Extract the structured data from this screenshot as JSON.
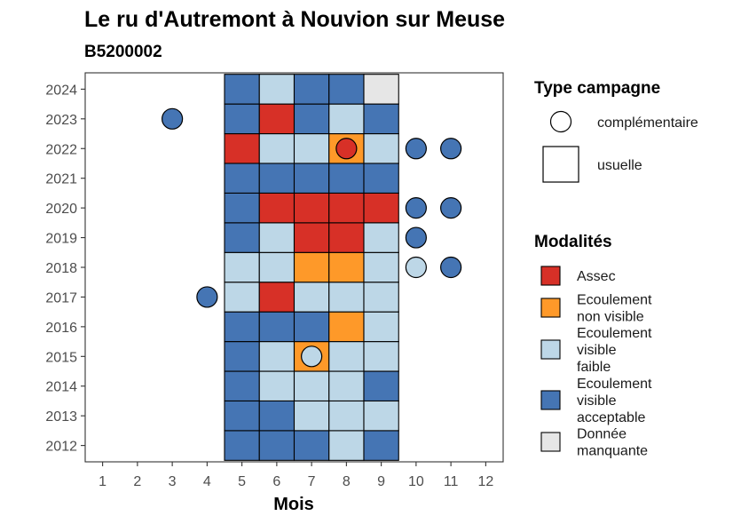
{
  "chart_data": {
    "type": "heatmap",
    "title": "Le ru d'Autremont à Nouvion sur Meuse",
    "subtitle": "B5200002",
    "xlabel": "Mois",
    "ylabel": "",
    "x_ticks": [
      1,
      2,
      3,
      4,
      5,
      6,
      7,
      8,
      9,
      10,
      11,
      12
    ],
    "y_ticks": [
      2012,
      2013,
      2014,
      2015,
      2016,
      2017,
      2018,
      2019,
      2020,
      2021,
      2022,
      2023,
      2024
    ],
    "xlim": [
      0.5,
      12.5
    ],
    "ylim": [
      2011.45,
      2024.55
    ],
    "grid": false,
    "legend_position": "right",
    "categories": {
      "A": {
        "label": "Assec",
        "color": "#D73027"
      },
      "O": {
        "label": "Ecoulement non visible",
        "color": "#FE9929"
      },
      "F": {
        "label": "Ecoulement visible faible",
        "color": "#BDD7E7"
      },
      "V": {
        "label": "Ecoulement visible acceptable",
        "color": "#4575B4"
      },
      "M": {
        "label": "Donnée manquante",
        "color": "#E6E6E6"
      }
    },
    "legend_modalites_title": "Modalités",
    "legend_modalites": [
      {
        "key": "A",
        "lines": [
          "Assec"
        ]
      },
      {
        "key": "O",
        "lines": [
          "Ecoulement",
          "non visible"
        ]
      },
      {
        "key": "F",
        "lines": [
          "Ecoulement",
          "visible",
          "faible"
        ]
      },
      {
        "key": "V",
        "lines": [
          "Ecoulement",
          "visible",
          "acceptable"
        ]
      },
      {
        "key": "M",
        "lines": [
          "Donnée",
          "manquante"
        ]
      }
    ],
    "legend_type_title": "Type campagne",
    "legend_type": [
      {
        "shape": "circle",
        "label": "complémentaire"
      },
      {
        "shape": "square",
        "label": "usuelle"
      }
    ],
    "usuelle": {
      "2024": [
        "V",
        "F",
        "V",
        "V",
        "M"
      ],
      "2023": [
        "V",
        "A",
        "V",
        "F",
        "V"
      ],
      "2022": [
        "A",
        "F",
        "F",
        "O",
        "F"
      ],
      "2021": [
        "V",
        "V",
        "V",
        "V",
        "V"
      ],
      "2020": [
        "V",
        "A",
        "A",
        "A",
        "A"
      ],
      "2019": [
        "V",
        "F",
        "A",
        "A",
        "F"
      ],
      "2018": [
        "F",
        "F",
        "O",
        "O",
        "F"
      ],
      "2017": [
        "F",
        "A",
        "F",
        "F",
        "F"
      ],
      "2016": [
        "V",
        "V",
        "V",
        "O",
        "F"
      ],
      "2015": [
        "V",
        "F",
        "O",
        "F",
        "F"
      ],
      "2014": [
        "V",
        "F",
        "F",
        "F",
        "V"
      ],
      "2013": [
        "V",
        "V",
        "F",
        "F",
        "F"
      ],
      "2012": [
        "V",
        "V",
        "V",
        "F",
        "V"
      ]
    },
    "usuelle_months": [
      5,
      6,
      7,
      8,
      9
    ],
    "complementaire": [
      {
        "year": 2023,
        "month": 3,
        "cat": "V"
      },
      {
        "year": 2022,
        "month": 8,
        "cat": "A"
      },
      {
        "year": 2022,
        "month": 10,
        "cat": "V"
      },
      {
        "year": 2022,
        "month": 11,
        "cat": "V"
      },
      {
        "year": 2020,
        "month": 10,
        "cat": "V"
      },
      {
        "year": 2020,
        "month": 11,
        "cat": "V"
      },
      {
        "year": 2019,
        "month": 10,
        "cat": "V"
      },
      {
        "year": 2018,
        "month": 10,
        "cat": "F"
      },
      {
        "year": 2018,
        "month": 11,
        "cat": "V"
      },
      {
        "year": 2017,
        "month": 4,
        "cat": "V"
      },
      {
        "year": 2015,
        "month": 7,
        "cat": "F"
      }
    ]
  }
}
